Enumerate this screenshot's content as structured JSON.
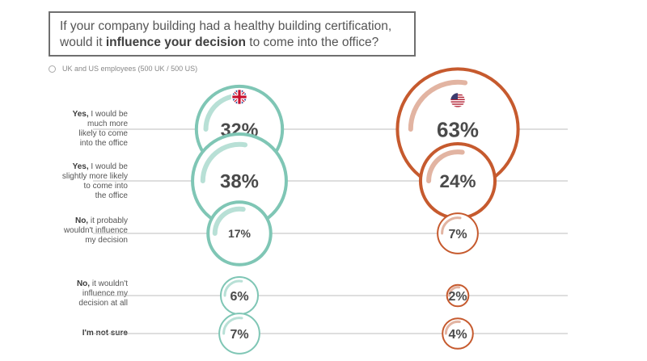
{
  "title": {
    "line1": "If your company building had a healthy building certification,",
    "line2_pre": "would it ",
    "line2_bold": "influence your decision",
    "line2_post": " to come into the office?"
  },
  "legend": {
    "label": "UK and US employees (500 UK / 500 US)"
  },
  "colors": {
    "uk": "#7fc6b5",
    "us": "#c65a2e",
    "uk_arc": "#b8e0d6",
    "us_arc": "#e2b4a2",
    "axis": "#bdbdbd"
  },
  "chart_data": {
    "type": "bubble",
    "series": [
      {
        "name": "UK",
        "flag": "uk-flag-icon",
        "values": [
          32,
          38,
          17,
          6,
          7
        ]
      },
      {
        "name": "US",
        "flag": "us-flag-icon",
        "values": [
          63,
          24,
          7,
          2,
          4
        ]
      }
    ],
    "categories": [
      {
        "bold": "Yes,",
        "rest": " I would be much more likely to come into the office",
        "lines": [
          "|Yes,| I would be",
          "much more",
          "likely to come",
          "into the office"
        ]
      },
      {
        "bold": "Yes,",
        "rest": " I would be slightly more likely to come into the office",
        "lines": [
          "|Yes,| I would be",
          "slightly more likely",
          "to come into",
          "the office"
        ]
      },
      {
        "bold": "No,",
        "rest": " it probably wouldn't influence my decision",
        "lines": [
          "|No,| it probably",
          "wouldn't influence",
          "my decision"
        ]
      },
      {
        "bold": "No,",
        "rest": " it wouldn't influence my decision at all",
        "lines": [
          "|No,| it wouldn't",
          "influence my",
          "decision at all"
        ]
      },
      {
        "bold": "I'm not sure",
        "rest": "",
        "lines": [
          "|I'm not sure|"
        ]
      }
    ],
    "unit": "%"
  }
}
